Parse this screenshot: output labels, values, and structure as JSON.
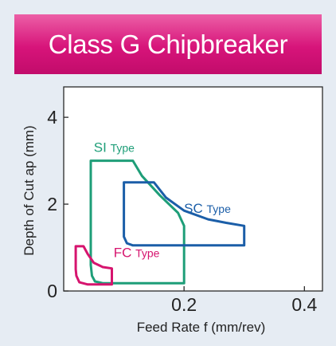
{
  "header": {
    "title": "Class G Chipbreaker"
  },
  "chart_data": {
    "type": "area",
    "title": "Class G Chipbreaker",
    "xlabel": "Feed Rate f (mm/rev)",
    "ylabel": "Depth of Cut ap (mm)",
    "xlim": [
      0,
      0.43
    ],
    "ylim": [
      0,
      4.7
    ],
    "x_ticks": [
      {
        "value": 0.2,
        "label": "0.2"
      },
      {
        "value": 0.4,
        "label": "0.4"
      }
    ],
    "y_ticks": [
      {
        "value": 0,
        "label": "0"
      },
      {
        "value": 2,
        "label": "2"
      },
      {
        "value": 4,
        "label": "4"
      }
    ],
    "grid": false,
    "series": [
      {
        "name": "SI Type",
        "color": "#1e9e78",
        "label": {
          "main": "SI",
          "suffix": "Type",
          "x": 0.05,
          "y": 3.2
        },
        "points": [
          [
            0.045,
            3.0
          ],
          [
            0.115,
            3.0
          ],
          [
            0.13,
            2.65
          ],
          [
            0.16,
            2.2
          ],
          [
            0.19,
            1.8
          ],
          [
            0.2,
            1.5
          ],
          [
            0.2,
            0.18
          ],
          [
            0.065,
            0.18
          ],
          [
            0.052,
            0.22
          ],
          [
            0.047,
            0.35
          ],
          [
            0.045,
            0.6
          ]
        ]
      },
      {
        "name": "SC Type",
        "color": "#1b5ea8",
        "label": {
          "main": "SC",
          "suffix": "Type",
          "x": 0.2,
          "y": 1.8
        },
        "points": [
          [
            0.1,
            2.5
          ],
          [
            0.15,
            2.5
          ],
          [
            0.17,
            2.15
          ],
          [
            0.2,
            1.85
          ],
          [
            0.24,
            1.65
          ],
          [
            0.27,
            1.57
          ],
          [
            0.3,
            1.5
          ],
          [
            0.3,
            1.05
          ],
          [
            0.115,
            1.05
          ],
          [
            0.105,
            1.1
          ],
          [
            0.1,
            1.25
          ]
        ]
      },
      {
        "name": "FC Type",
        "color": "#d6146e",
        "label": {
          "main": "FC",
          "suffix": "Type",
          "x": 0.083,
          "y": 0.78
        },
        "points": [
          [
            0.02,
            1.03
          ],
          [
            0.033,
            1.03
          ],
          [
            0.04,
            0.85
          ],
          [
            0.05,
            0.65
          ],
          [
            0.065,
            0.55
          ],
          [
            0.08,
            0.52
          ],
          [
            0.08,
            0.15
          ],
          [
            0.04,
            0.15
          ],
          [
            0.026,
            0.2
          ],
          [
            0.021,
            0.35
          ],
          [
            0.02,
            0.5
          ]
        ]
      }
    ]
  }
}
